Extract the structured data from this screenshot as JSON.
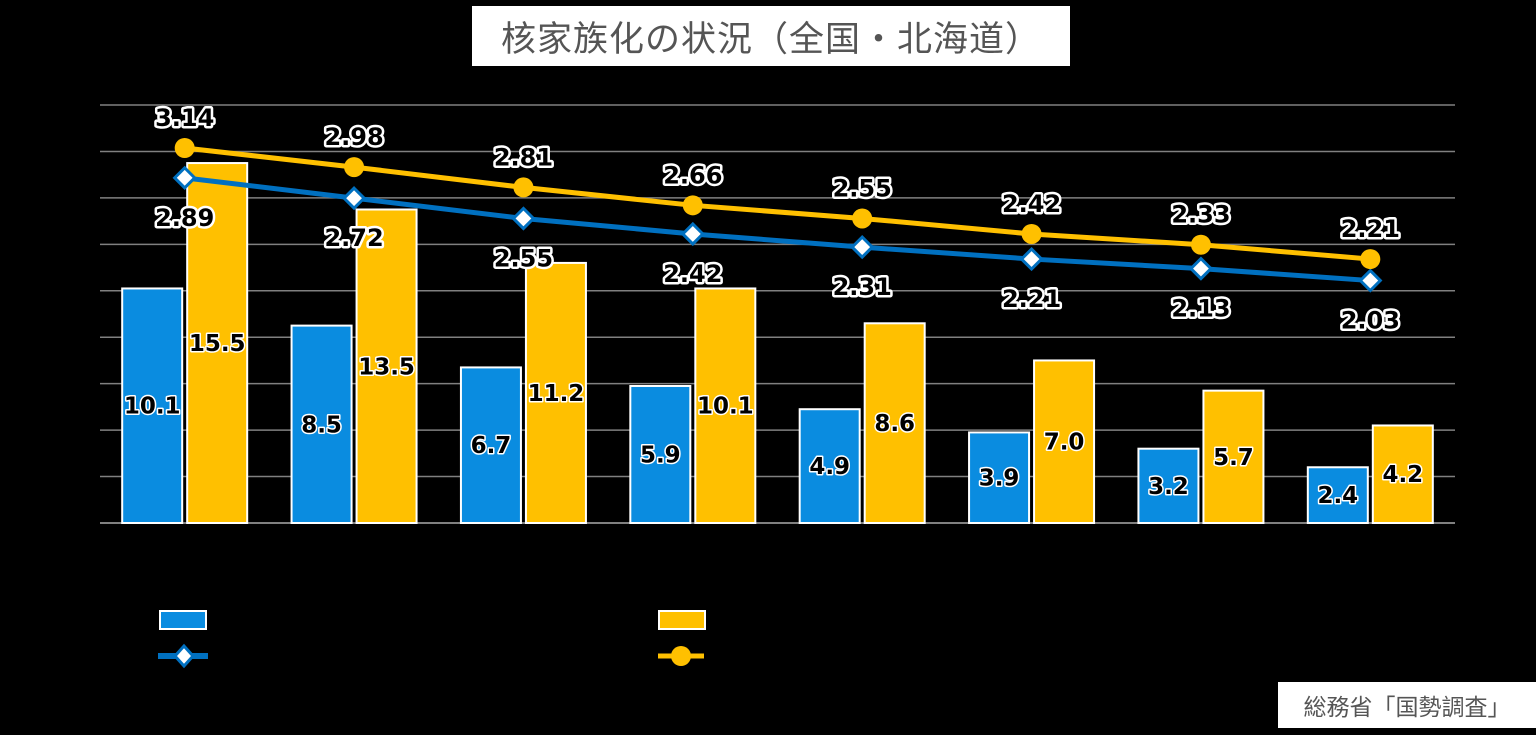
{
  "title": "核家族化の状況（全国・北海道）",
  "source": "総務省「国勢調査」",
  "colors": {
    "background": "#000000",
    "grid": "#808080",
    "bar_national": "#0A8CE0",
    "bar_hokkaido": "#FFC000",
    "line_national": "#0070C0",
    "line_hokkaido": "#FFC000"
  },
  "legend": {
    "items": [
      {
        "icon": "blue-bar-swatch",
        "label": ""
      },
      {
        "icon": "yellow-bar-swatch",
        "label": ""
      },
      {
        "icon": "blue-line-diamond-marker",
        "label": ""
      },
      {
        "icon": "yellow-line-circle-marker",
        "label": ""
      }
    ]
  },
  "chart_data": {
    "type": "bar+line",
    "title": "核家族化の状況（全国・北海道）",
    "categories": [
      "",
      "",
      "",
      "",
      "",
      "",
      "",
      ""
    ],
    "xlabel": "",
    "ylabel": "",
    "ylim": [
      0,
      18
    ],
    "y2lim": [
      0,
      3.5
    ],
    "grid": true,
    "legend_position": "bottom",
    "series": [
      {
        "name": "",
        "type": "bar",
        "axis": "primary",
        "color": "#0A8CE0",
        "values": [
          10.1,
          8.5,
          6.7,
          5.9,
          4.9,
          3.9,
          3.2,
          2.4
        ]
      },
      {
        "name": "",
        "type": "bar",
        "axis": "primary",
        "color": "#FFC000",
        "values": [
          15.5,
          13.5,
          11.2,
          10.1,
          8.6,
          7.0,
          5.7,
          4.2
        ]
      },
      {
        "name": "",
        "type": "line",
        "axis": "secondary",
        "marker": "diamond",
        "color": "#0070C0",
        "values": [
          2.89,
          2.72,
          2.55,
          2.42,
          2.31,
          2.21,
          2.13,
          2.03
        ]
      },
      {
        "name": "",
        "type": "line",
        "axis": "secondary",
        "marker": "circle",
        "color": "#FFC000",
        "values": [
          3.14,
          2.98,
          2.81,
          2.66,
          2.55,
          2.42,
          2.33,
          2.21
        ]
      }
    ],
    "bar_labels_national": [
      "10.1",
      "8.5",
      "6.7",
      "5.9",
      "4.9",
      "3.9",
      "3.2",
      "2.4"
    ],
    "bar_labels_hokkaido": [
      "15.5",
      "13.5",
      "11.2",
      "10.1",
      "8.6",
      "7.0",
      "5.7",
      "4.2"
    ],
    "line_labels_national": [
      "2.89",
      "2.72",
      "2.55",
      "2.42",
      "2.31",
      "2.21",
      "2.13",
      "2.03"
    ],
    "line_labels_hokkaido": [
      "3.14",
      "2.98",
      "2.81",
      "2.66",
      "2.55",
      "2.42",
      "2.33",
      "2.21"
    ]
  }
}
